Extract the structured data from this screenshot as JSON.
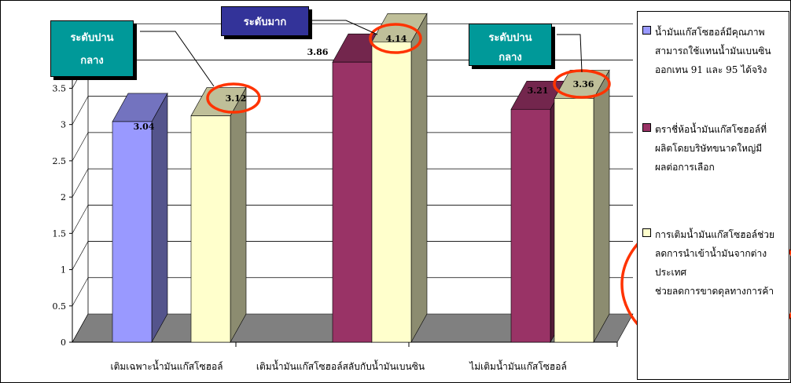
{
  "chart_data": {
    "type": "bar",
    "categories": [
      "เติมเฉพาะน้ำมันแก๊สโซฮอล์",
      "เติมน้ำมันแก๊สโซฮอล์สลับกับน้ำมันเบนซิน",
      "ไม่เติมน้ำมันแก๊สโซฮอล์"
    ],
    "series": [
      {
        "name": "น้ำมันแก๊สโซฮอล์มีคุณภาพสามารถใช้แทนน้ำมันเบนซินออกเทน 91 และ 95 ได้จริง",
        "values": [
          3.04,
          null,
          null
        ],
        "color": "#9999ff"
      },
      {
        "name": "ตราชี่ห้อน้ำมันแก๊สโซฮอล์ที่ผลิตโดยบริษัทขนาดใหญ่มีผลต่อการเลือก",
        "values": [
          null,
          3.86,
          3.21
        ],
        "color": "#993366"
      },
      {
        "name": "การเติมน้ำมันแก๊สโซฮอล์ช่วยลดการนำเข้าน้ำมันจากต่างประเทศช่วยลดการขาดดุลทางการค้า",
        "values": [
          3.12,
          4.14,
          3.36
        ],
        "color": "#ffffcc"
      }
    ],
    "bar_order": [
      {
        "category": 0,
        "series": 0,
        "value": 3.04,
        "label": "3.04"
      },
      {
        "category": 0,
        "series": 2,
        "value": 3.12,
        "label": "3.12"
      },
      {
        "category": 1,
        "series": 1,
        "value": 3.86,
        "label": "3.86"
      },
      {
        "category": 1,
        "series": 2,
        "value": 4.14,
        "label": "4.14"
      },
      {
        "category": 2,
        "series": 1,
        "value": 3.21,
        "label": "3.21"
      },
      {
        "category": 2,
        "series": 2,
        "value": 3.36,
        "label": "3.36"
      }
    ],
    "y_ticks": [
      "0",
      "0.5",
      "1",
      "1.5",
      "2",
      "2.5",
      "3",
      "3.5",
      "4"
    ],
    "ylim": [
      0,
      4.5
    ],
    "grid": true,
    "legend": "right",
    "circled_labels": [
      "3.12",
      "4.14",
      "3.36"
    ]
  },
  "callouts": [
    {
      "line1": "ระดับปาน",
      "line2": "กลาง",
      "color": "#009999"
    },
    {
      "line1": "ระดับมาก",
      "line2": "",
      "color": "#333399"
    },
    {
      "line1": "ระดับปาน",
      "line2": "กลาง",
      "color": "#009999"
    }
  ],
  "legend": {
    "items": [
      {
        "lines": [
          "น้ำมันแก๊สโซฮอล์มีคุณภาพ",
          "สามารถใช้แทนน้ำมันเบนซิน",
          "ออกเทน 91 และ 95 ได้จริง"
        ],
        "color": "#9999ff"
      },
      {
        "lines": [
          "ตราชี่ห้อน้ำมันแก๊สโซฮอล์ที่",
          "ผลิตโดยบริษัทขนาดใหญ่มี",
          "ผลต่อการเลือก"
        ],
        "color": "#993366"
      },
      {
        "lines": [
          "การเติมน้ำมันแก๊สโซฮอล์ช่วย",
          "ลดการนำเข้าน้ำมันจากต่างประเทศ",
          "ช่วยลดการขาดดุลทางการค้า"
        ],
        "color": "#ffffcc"
      }
    ]
  }
}
